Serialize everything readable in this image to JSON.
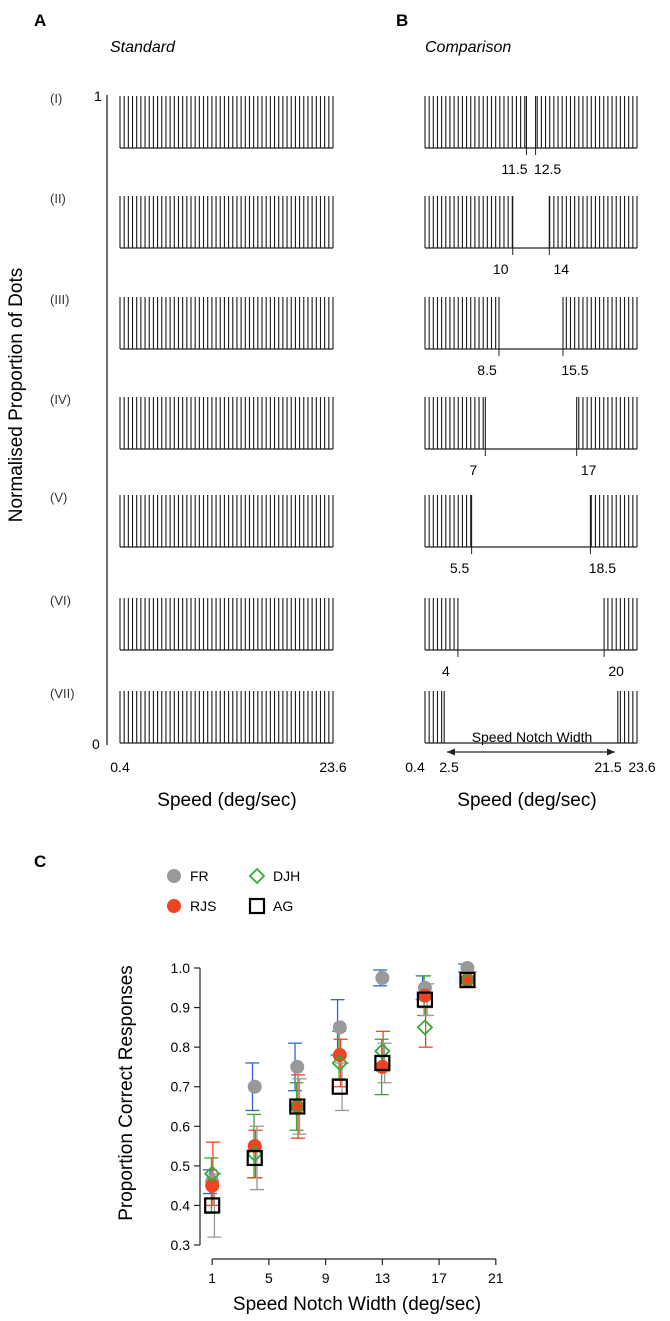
{
  "panels": {
    "A": {
      "letter": "A",
      "subtitle": "Standard",
      "xlabel": "Speed (deg/sec)",
      "ylabel": "Normalised Proportion of Dots",
      "y_top": "1",
      "y_bottom": "0",
      "x_min_label": "0.4",
      "x_max_label": "23.6"
    },
    "B": {
      "letter": "B",
      "subtitle": "Comparison",
      "xlabel": "Speed (deg/sec)",
      "notch_label": "Speed Notch Width",
      "x_ticks": [
        "0.4",
        "2.5",
        "21.5",
        "23.6"
      ]
    },
    "C": {
      "letter": "C"
    }
  },
  "rows": [
    {
      "label": "(I)",
      "left": "11.5",
      "right": "12.5"
    },
    {
      "label": "(II)",
      "left": "10",
      "right": "14"
    },
    {
      "label": "(III)",
      "left": "8.5",
      "right": "15.5"
    },
    {
      "label": "(IV)",
      "left": "7",
      "right": "17"
    },
    {
      "label": "(V)",
      "left": "5.5",
      "right": "18.5"
    },
    {
      "label": "(VI)",
      "left": "4",
      "right": "20"
    },
    {
      "label": "(VII)",
      "left": "2.5",
      "right": "21.5"
    }
  ],
  "chart_data": {
    "type": "scatter",
    "xlabel": "Speed Notch Width (deg/sec)",
    "ylabel": "Proportion Correct Responses",
    "x_ticks": [
      1,
      5,
      9,
      13,
      17,
      21
    ],
    "y_ticks": [
      0.3,
      0.4,
      0.5,
      0.6,
      0.7,
      0.8,
      0.9,
      1.0
    ],
    "xlim": [
      0,
      22
    ],
    "ylim": [
      0.3,
      1.0
    ],
    "x": [
      1,
      4,
      7,
      10,
      13,
      16,
      19
    ],
    "series": [
      {
        "name": "FR",
        "marker": "circle",
        "color": "#999999",
        "values": [
          0.46,
          0.7,
          0.75,
          0.85,
          0.975,
          0.95,
          1.0
        ],
        "err": [
          0.03,
          0.06,
          0.06,
          0.07,
          0.02,
          0.03,
          0.01
        ]
      },
      {
        "name": "RJS",
        "marker": "circle",
        "color": "#ee4422",
        "values": [
          0.45,
          0.55,
          0.65,
          0.78,
          0.75,
          0.93,
          0.97
        ],
        "err": [
          0.07,
          0.08,
          0.06,
          0.06,
          0.07,
          0.05,
          0.02
        ]
      },
      {
        "name": "DJH",
        "marker": "diamond-open",
        "color": "#33aa33",
        "values": [
          0.48,
          0.53,
          0.65,
          0.76,
          0.79,
          0.85,
          0.97
        ],
        "err": [
          0.08,
          0.06,
          0.08,
          0.06,
          0.05,
          0.05,
          0.02
        ]
      },
      {
        "name": "AG",
        "marker": "square-open",
        "color": "#000000",
        "values": [
          0.4,
          0.52,
          0.65,
          0.7,
          0.76,
          0.92,
          0.97
        ],
        "err": [
          0.08,
          0.08,
          0.07,
          0.06,
          0.05,
          0.04,
          0.02
        ]
      }
    ],
    "errorbar_colors": [
      "#3366cc",
      "#33aa33",
      "#ee4422",
      "#999999"
    ]
  }
}
